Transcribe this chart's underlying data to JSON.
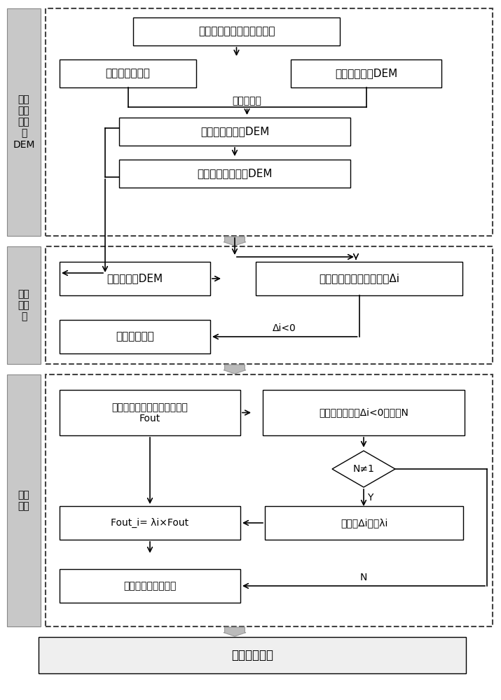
{
  "bg_color": "#ffffff",
  "section1_label": "构建\n六边\n形格\n网\nDEM",
  "section2_label": "多流\n向计\n算",
  "section3_label": "流量\n分配",
  "box1_text": "正二十面体六边形等积格网",
  "box2a_text": "区域六边形格网",
  "box2b_text": "区域规则格网DEM",
  "bilinear_text": "双线性插值",
  "box3_text": "六边形格网顶点DEM",
  "box4_text": "六边形格网中心点DEM",
  "box5a_text": "三角形单元DEM",
  "box5b_text": "与邻近六边形格网高程差Δi",
  "box6_text": "定义水流流向",
  "cond_text": "Δi<0",
  "box7a_line1": "计算每个六边形可流出水流量",
  "box7a_line2": "Fout",
  "box7b_text": "统计每个六边形Δi<0的个数N",
  "diamond_text": "N≠1",
  "box8a_text": "归一化Δi，得λi",
  "box9_text": "Fout_i= λi×Fout",
  "box10_text": "更新邻近格网水流量",
  "final_box_text": "流域路径跟踪",
  "Y_label": "Y",
  "N_label": "N"
}
